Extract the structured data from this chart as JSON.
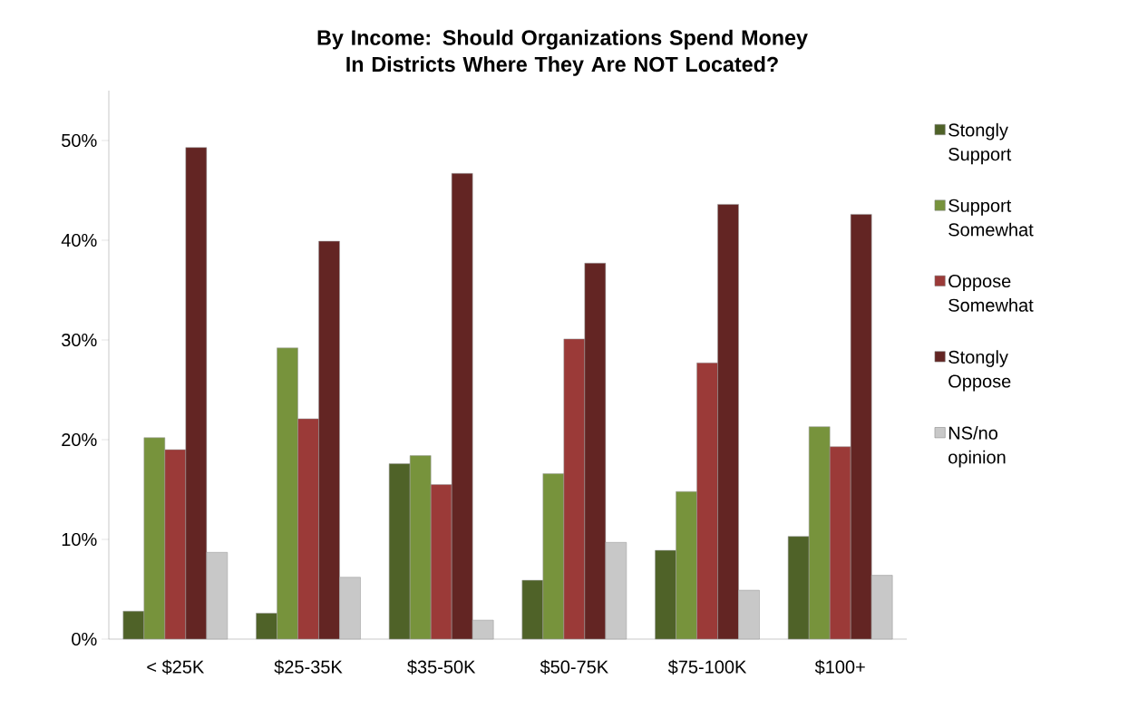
{
  "chart_data": {
    "type": "bar",
    "title": "By Income:  Should Organizations Spend Money In Districts Where They Are NOT Located?",
    "categories": [
      "< $25K",
      "$25-35K",
      "$35-50K",
      "$50-75K",
      "$75-100K",
      "$100+"
    ],
    "series": [
      {
        "name": "Stongly Support",
        "color": "#4f6228",
        "values": [
          2.8,
          2.6,
          17.6,
          5.9,
          8.9,
          10.3
        ]
      },
      {
        "name": "Support Somewhat",
        "color": "#77933c",
        "values": [
          20.2,
          29.2,
          18.4,
          16.6,
          14.8,
          21.3
        ]
      },
      {
        "name": "Oppose Somewhat",
        "color": "#9b3a38",
        "values": [
          19.0,
          22.1,
          15.5,
          30.1,
          27.7,
          19.3
        ]
      },
      {
        "name": "Stongly Oppose",
        "color": "#632523",
        "values": [
          49.3,
          39.9,
          46.7,
          37.7,
          43.6,
          42.6
        ]
      },
      {
        "name": "NS/no opinion",
        "color": "#c8c8c8",
        "values": [
          8.7,
          6.2,
          1.9,
          9.7,
          4.9,
          6.4
        ]
      }
    ],
    "ylim": [
      0,
      55
    ],
    "yticks": [
      {
        "value": 0,
        "label": "0%"
      },
      {
        "value": 10,
        "label": "10%"
      },
      {
        "value": 20,
        "label": "20%"
      },
      {
        "value": 30,
        "label": "30%"
      },
      {
        "value": 40,
        "label": "40%"
      },
      {
        "value": 50,
        "label": "50%"
      }
    ],
    "grid": false,
    "legend": "right"
  }
}
